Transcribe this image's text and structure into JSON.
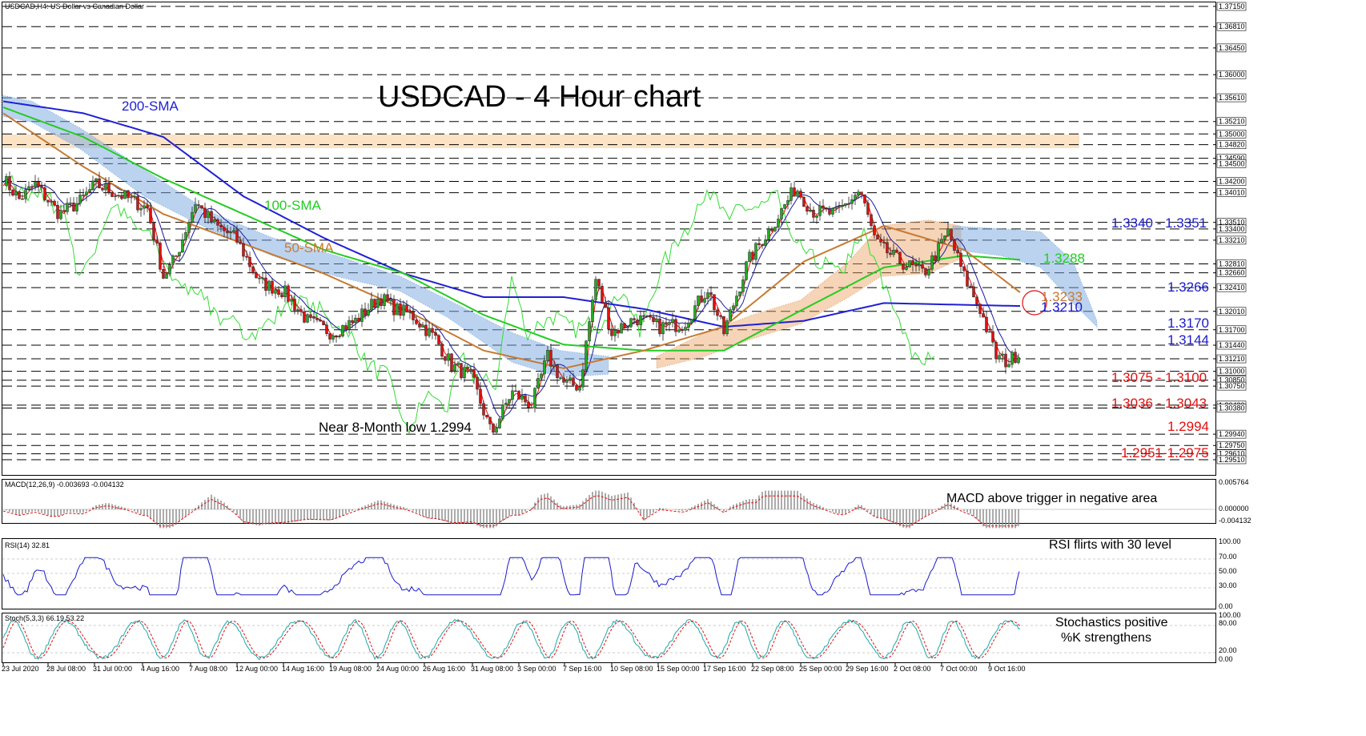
{
  "header": {
    "symbol_line": "USDCAD,H4:  US Dollar vs Canadian Dollar",
    "title": "USDCAD - 4 Hour chart"
  },
  "colors": {
    "sma200": "#1f1fd6",
    "sma100": "#22cc22",
    "sma50": "#c87a32",
    "tenkan": "#e01010",
    "kijun": "#1a1aa0",
    "chikou": "#33dd33",
    "cloud_bear": "#7aa8e0",
    "cloud_bull": "#e8a060",
    "resistance_zone": "#fbe3c4",
    "support_label": "#e01010",
    "resistance_label": "#1a1acc",
    "candle_up": "#22aa22",
    "candle_down": "#dd1111"
  },
  "price_axis": {
    "ticks": [
      "1.37150",
      "1.36810",
      "1.36450",
      "1.36000",
      "1.35610",
      "1.35210",
      "1.35000",
      "1.34820",
      "1.34590",
      "1.34500",
      "1.34200",
      "1.34010",
      "1.33510",
      "1.33400",
      "1.33210",
      "1.32810",
      "1.32660",
      "1.32410",
      "1.32010",
      "1.31700",
      "1.31440",
      "1.31210",
      "1.31000",
      "1.30850",
      "1.30750",
      "1.30430",
      "1.30380",
      "1.29940",
      "1.29750",
      "1.29610",
      "1.29510"
    ]
  },
  "time_axis": {
    "labels": [
      "23 Jul 2020",
      "28 Jul 08:00",
      "31 Jul 00:00",
      "4 Aug 16:00",
      "7 Aug 08:00",
      "12 Aug 00:00",
      "14 Aug 16:00",
      "19 Aug 08:00",
      "24 Aug 00:00",
      "26 Aug 16:00",
      "31 Aug 08:00",
      "3 Sep 00:00",
      "7 Sep 16:00",
      "10 Sep 08:00",
      "15 Sep 00:00",
      "17 Sep 16:00",
      "22 Sep 08:00",
      "25 Sep 00:00",
      "29 Sep 16:00",
      "2 Oct 08:00",
      "7 Oct 00:00",
      "9 Oct 16:00"
    ]
  },
  "annotations": {
    "sma200_label": "200-SMA",
    "sma100_label": "100-SMA",
    "sma50_label": "50-SMA",
    "low_note": "Near 8-Month low 1.2994",
    "res_1": "1.3340 - 1.3351",
    "res_2": "1.3288",
    "res_3": "1.3266",
    "res_4": "1.3233",
    "res_5": "1.3210",
    "res_6": "1.3170",
    "res_7": "1.3144",
    "sup_1": "1.3075 - 1.3100",
    "sup_2": "1.3036 - 1.3043",
    "sup_3": "1.2994",
    "sup_4": "1.2951-1.2975"
  },
  "macd": {
    "header": "MACD(12,26,9) -0.003693 -0.004132",
    "note": "MACD above trigger in negative area",
    "ticks": [
      "0.005764",
      "0.000000",
      "-0.004132"
    ]
  },
  "rsi": {
    "header": "RSI(14) 32.81",
    "note": "RSI flirts with 30 level",
    "ticks": [
      "100.00",
      "70.00",
      "50.00",
      "30.00",
      "0.00"
    ]
  },
  "stoch": {
    "header": "Stoch(5,3,3) 66.19 53.22",
    "note_1": "Stochastics positive",
    "note_2": "%K strengthens",
    "ticks": [
      "100.00",
      "80.00",
      "20.00",
      "0.00"
    ]
  },
  "chart_data": {
    "type": "candlestick",
    "title": "USDCAD - 4 Hour chart",
    "timeframe": "H4",
    "x_range": [
      "23 Jul 2020",
      "9 Oct 2020"
    ],
    "ylim": [
      1.2951,
      1.3715
    ],
    "price_path": [
      [
        0,
        1.3425
      ],
      [
        20,
        1.339
      ],
      [
        40,
        1.3415
      ],
      [
        70,
        1.3365
      ],
      [
        95,
        1.3385
      ],
      [
        115,
        1.3415
      ],
      [
        150,
        1.3395
      ],
      [
        180,
        1.3375
      ],
      [
        200,
        1.326
      ],
      [
        215,
        1.329
      ],
      [
        240,
        1.3385
      ],
      [
        265,
        1.3345
      ],
      [
        290,
        1.3325
      ],
      [
        320,
        1.325
      ],
      [
        350,
        1.3235
      ],
      [
        380,
        1.3185
      ],
      [
        410,
        1.3165
      ],
      [
        440,
        1.3185
      ],
      [
        470,
        1.3225
      ],
      [
        490,
        1.3205
      ],
      [
        510,
        1.3195
      ],
      [
        540,
        1.3155
      ],
      [
        560,
        1.311
      ],
      [
        585,
        1.309
      ],
      [
        610,
        1.2994
      ],
      [
        635,
        1.3065
      ],
      [
        660,
        1.3043
      ],
      [
        680,
        1.3125
      ],
      [
        700,
        1.308
      ],
      [
        720,
        1.3075
      ],
      [
        740,
        1.3255
      ],
      [
        760,
        1.3165
      ],
      [
        790,
        1.319
      ],
      [
        820,
        1.3175
      ],
      [
        850,
        1.318
      ],
      [
        880,
        1.324
      ],
      [
        900,
        1.3165
      ],
      [
        930,
        1.3285
      ],
      [
        960,
        1.3345
      ],
      [
        990,
        1.341
      ],
      [
        1010,
        1.337
      ],
      [
        1040,
        1.3365
      ],
      [
        1070,
        1.3405
      ],
      [
        1090,
        1.3315
      ],
      [
        1120,
        1.3285
      ],
      [
        1150,
        1.3265
      ],
      [
        1170,
        1.331
      ],
      [
        1180,
        1.3335
      ],
      [
        1200,
        1.326
      ],
      [
        1220,
        1.3205
      ],
      [
        1240,
        1.3125
      ],
      [
        1255,
        1.3115
      ],
      [
        1270,
        1.3135
      ]
    ],
    "indicators": {
      "sma200": [
        [
          0,
          1.3555
        ],
        [
          100,
          1.3535
        ],
        [
          200,
          1.3495
        ],
        [
          300,
          1.3395
        ],
        [
          400,
          1.3325
        ],
        [
          500,
          1.3265
        ],
        [
          600,
          1.3225
        ],
        [
          700,
          1.3225
        ],
        [
          800,
          1.3205
        ],
        [
          900,
          1.3175
        ],
        [
          1000,
          1.3185
        ],
        [
          1100,
          1.3215
        ],
        [
          1200,
          1.3212
        ],
        [
          1270,
          1.321
        ]
      ],
      "sma100": [
        [
          0,
          1.3545
        ],
        [
          100,
          1.3495
        ],
        [
          200,
          1.3425
        ],
        [
          300,
          1.3365
        ],
        [
          400,
          1.3305
        ],
        [
          500,
          1.3265
        ],
        [
          600,
          1.3195
        ],
        [
          700,
          1.3145
        ],
        [
          800,
          1.3135
        ],
        [
          900,
          1.3135
        ],
        [
          1000,
          1.3205
        ],
        [
          1100,
          1.3275
        ],
        [
          1200,
          1.3295
        ],
        [
          1270,
          1.3288
        ]
      ],
      "sma50": [
        [
          0,
          1.3535
        ],
        [
          100,
          1.3445
        ],
        [
          200,
          1.3365
        ],
        [
          300,
          1.3315
        ],
        [
          400,
          1.3265
        ],
        [
          500,
          1.3205
        ],
        [
          600,
          1.3135
        ],
        [
          700,
          1.3105
        ],
        [
          800,
          1.3135
        ],
        [
          900,
          1.3175
        ],
        [
          1000,
          1.3285
        ],
        [
          1100,
          1.3345
        ],
        [
          1200,
          1.3305
        ],
        [
          1270,
          1.3233
        ]
      ]
    },
    "levels": {
      "resistance": [
        1.3351,
        1.334,
        1.3288,
        1.3266,
        1.3233,
        1.321,
        1.317,
        1.3144
      ],
      "support": [
        1.31,
        1.3075,
        1.3043,
        1.3036,
        1.2994,
        1.2975,
        1.2951
      ],
      "resistance_zone": [
        1.3482,
        1.35
      ]
    },
    "macd": {
      "macd": -0.003693,
      "signal": -0.004132,
      "ylim": [
        -0.004132,
        0.005764
      ]
    },
    "rsi": {
      "value": 32.81,
      "levels": [
        70,
        50,
        30
      ],
      "ylim": [
        0,
        100
      ]
    },
    "stochastic": {
      "k": 66.19,
      "d": 53.22,
      "levels": [
        80,
        20
      ],
      "ylim": [
        0,
        100
      ]
    }
  }
}
